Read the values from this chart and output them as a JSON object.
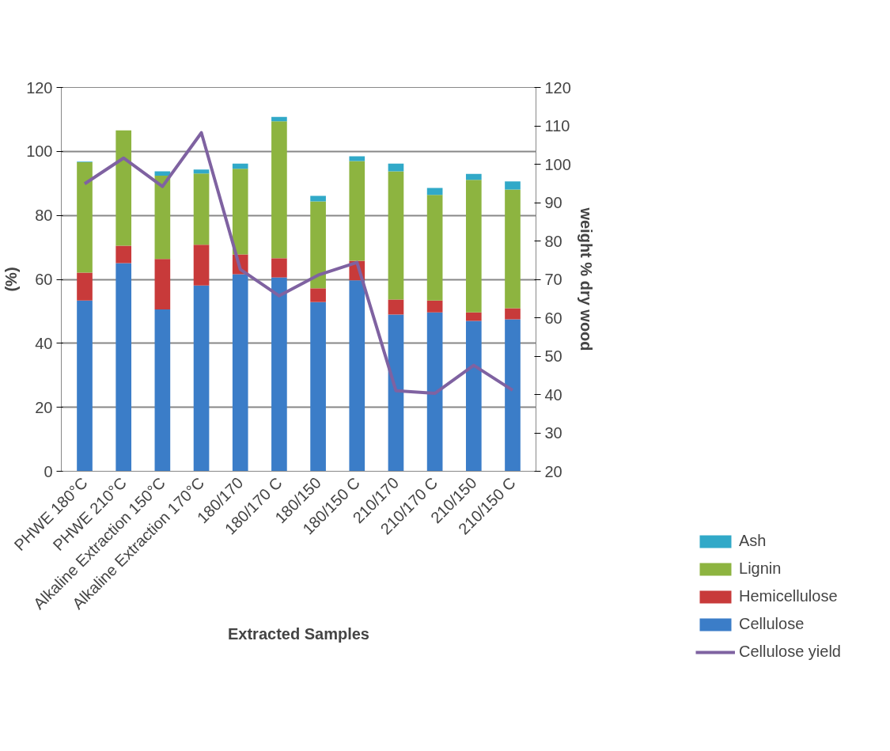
{
  "chart_data": {
    "type": "bar",
    "stacked": true,
    "xlabel": "Extracted Samples",
    "ylabel": "(%)",
    "y2label": "weight % dry wood",
    "categories": [
      "PHWE 180°C",
      "PHWE 210°C",
      "Alkaline Extraction 150°C",
      "Alkaline Extraction 170°C",
      "180/170",
      "180/170 C",
      "180/150",
      "180/150 C",
      "210/170",
      "210/170 C",
      "210/150",
      "210/150 C"
    ],
    "series": [
      {
        "name": "Cellulose",
        "color": "#3b7dc8",
        "values": [
          53.4,
          65.1,
          50.6,
          58.1,
          61.6,
          60.6,
          52.9,
          59.7,
          49.0,
          49.7,
          47.0,
          47.5
        ]
      },
      {
        "name": "Hemicellulose",
        "color": "#c83a3a",
        "values": [
          8.7,
          5.4,
          15.8,
          12.7,
          6.2,
          6.0,
          4.3,
          6.1,
          4.7,
          3.7,
          2.7,
          3.5
        ]
      },
      {
        "name": "Lignin",
        "color": "#8db440",
        "values": [
          34.5,
          36.1,
          26.0,
          22.3,
          26.8,
          42.8,
          27.2,
          31.2,
          40.1,
          33.0,
          41.4,
          37.1
        ]
      },
      {
        "name": "Ash",
        "color": "#31a9c8",
        "values": [
          0.2,
          0,
          1.4,
          1.2,
          1.6,
          1.4,
          1.7,
          1.5,
          2.4,
          2.2,
          1.9,
          2.5
        ]
      },
      {
        "name": "Cellulose yield",
        "type": "line",
        "axis": "y2",
        "color": "#7f62a1",
        "values": [
          94.9,
          101.6,
          94.2,
          108.2,
          72.6,
          65.7,
          71.1,
          74.4,
          41.0,
          40.3,
          47.6,
          41.1
        ]
      }
    ],
    "ylim": [
      0,
      120
    ],
    "yticks": [
      0,
      20,
      40,
      60,
      80,
      100,
      120
    ],
    "y2lim": [
      20,
      120
    ],
    "y2ticks": [
      20,
      30,
      40,
      50,
      60,
      70,
      80,
      90,
      100,
      110,
      120
    ],
    "grid": "y",
    "legend": "bottom right",
    "line_style": "solid"
  }
}
